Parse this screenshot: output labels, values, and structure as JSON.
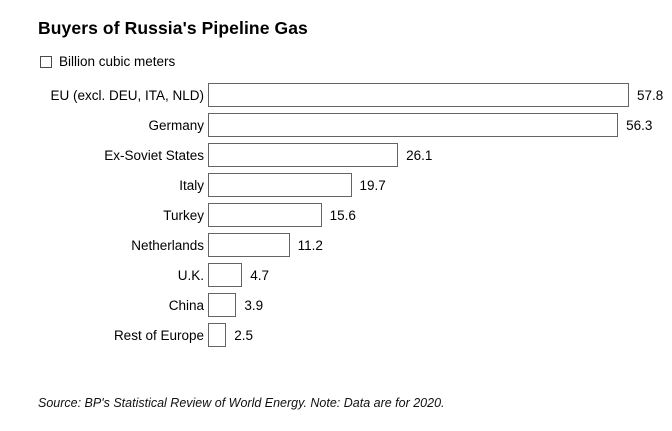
{
  "title": "Buyers of Russia's Pipeline Gas",
  "legend": {
    "label": "Billion cubic meters",
    "swatch_fill": "#ffffff",
    "swatch_border": "#4a4a4a"
  },
  "source_note": "Source: BP's Statistical Review of World Energy. Note: Data are for 2020.",
  "colors": {
    "background": "#ffffff",
    "text": "#000000",
    "bar_fill": "#ffffff",
    "bar_border": "#646464"
  },
  "chart_data": {
    "type": "bar",
    "orientation": "horizontal",
    "title": "Buyers of Russia's Pipeline Gas",
    "unit": "Billion cubic meters",
    "categories": [
      "EU (excl. DEU, ITA, NLD)",
      "Germany",
      "Ex-Soviet States",
      "Italy",
      "Turkey",
      "Netherlands",
      "U.K.",
      "China",
      "Rest of Europe"
    ],
    "values": [
      57.8,
      56.3,
      26.1,
      19.7,
      15.6,
      11.2,
      4.7,
      3.9,
      2.5
    ],
    "value_labels": [
      "57.8",
      "56.3",
      "26.1",
      "19.7",
      "15.6",
      "11.2",
      "4.7",
      "3.9",
      "2.5"
    ],
    "xlim": [
      0,
      57.8
    ],
    "grid": false,
    "bar_style": "outlined-white",
    "legend_position": "top-left",
    "value_label_position": "right-of-bar"
  }
}
